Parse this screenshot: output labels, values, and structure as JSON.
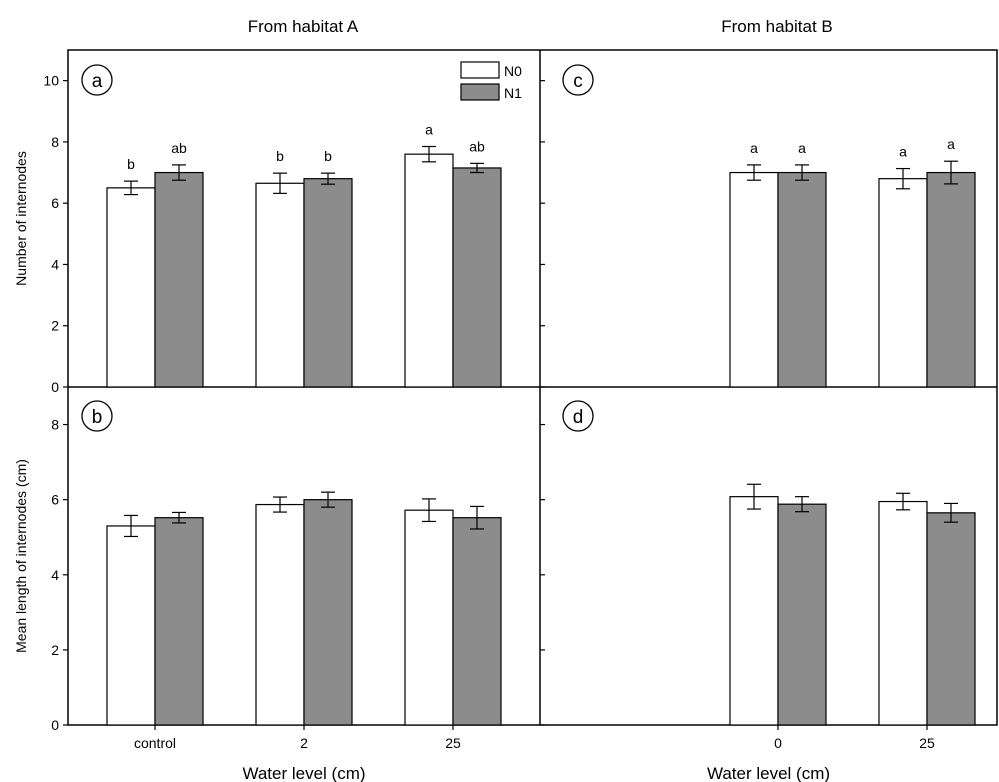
{
  "column_titles": [
    "From habitat A",
    "From habitat B"
  ],
  "legend": [
    {
      "label": "N0",
      "color": "#ffffff"
    },
    {
      "label": "N1",
      "color": "#8c8c8c"
    }
  ],
  "chart_data": [
    {
      "panel": "a",
      "type": "bar",
      "ylabel": "Number of internodes",
      "xlabel": "",
      "ylim": [
        0,
        11
      ],
      "yticks": [
        0,
        2,
        4,
        6,
        8,
        10
      ],
      "categories": [
        "control",
        "2",
        "25"
      ],
      "series": [
        {
          "name": "N0",
          "values": [
            6.5,
            6.65,
            7.6
          ],
          "errors": [
            0.22,
            0.33,
            0.25
          ],
          "labels": [
            "b",
            "b",
            "a"
          ]
        },
        {
          "name": "N1",
          "values": [
            7.0,
            6.8,
            7.15
          ],
          "errors": [
            0.25,
            0.18,
            0.15
          ],
          "labels": [
            "ab",
            "b",
            "ab"
          ]
        }
      ]
    },
    {
      "panel": "b",
      "type": "bar",
      "ylabel": "Mean length of internodes (cm)",
      "xlabel": "Water level (cm)",
      "ylim": [
        0,
        9
      ],
      "yticks": [
        0,
        2,
        4,
        6,
        8
      ],
      "categories": [
        "control",
        "2",
        "25"
      ],
      "series": [
        {
          "name": "N0",
          "values": [
            5.3,
            5.87,
            5.72
          ],
          "errors": [
            0.28,
            0.2,
            0.3
          ],
          "labels": []
        },
        {
          "name": "N1",
          "values": [
            5.52,
            6.0,
            5.52
          ],
          "errors": [
            0.14,
            0.2,
            0.3
          ],
          "labels": []
        }
      ]
    },
    {
      "panel": "c",
      "type": "bar",
      "ylabel": "",
      "xlabel": "",
      "ylim": [
        0,
        11
      ],
      "yticks": [
        0,
        2,
        4,
        6,
        8,
        10
      ],
      "categories": [
        "",
        "0",
        "25"
      ],
      "series": [
        {
          "name": "N0",
          "values": [
            null,
            7.0,
            6.8
          ],
          "errors": [
            null,
            0.25,
            0.33
          ],
          "labels": [
            "",
            "a",
            "a"
          ]
        },
        {
          "name": "N1",
          "values": [
            null,
            7.0,
            7.0
          ],
          "errors": [
            null,
            0.25,
            0.37
          ],
          "labels": [
            "",
            "a",
            "a"
          ]
        }
      ]
    },
    {
      "panel": "d",
      "type": "bar",
      "ylabel": "",
      "xlabel": "Water level (cm)",
      "ylim": [
        0,
        9
      ],
      "yticks": [
        0,
        2,
        4,
        6,
        8
      ],
      "categories": [
        "",
        "0",
        "25"
      ],
      "series": [
        {
          "name": "N0",
          "values": [
            null,
            6.08,
            5.95
          ],
          "errors": [
            null,
            0.33,
            0.22
          ],
          "labels": []
        },
        {
          "name": "N1",
          "values": [
            null,
            5.88,
            5.65
          ],
          "errors": [
            null,
            0.2,
            0.25
          ],
          "labels": []
        }
      ]
    }
  ]
}
